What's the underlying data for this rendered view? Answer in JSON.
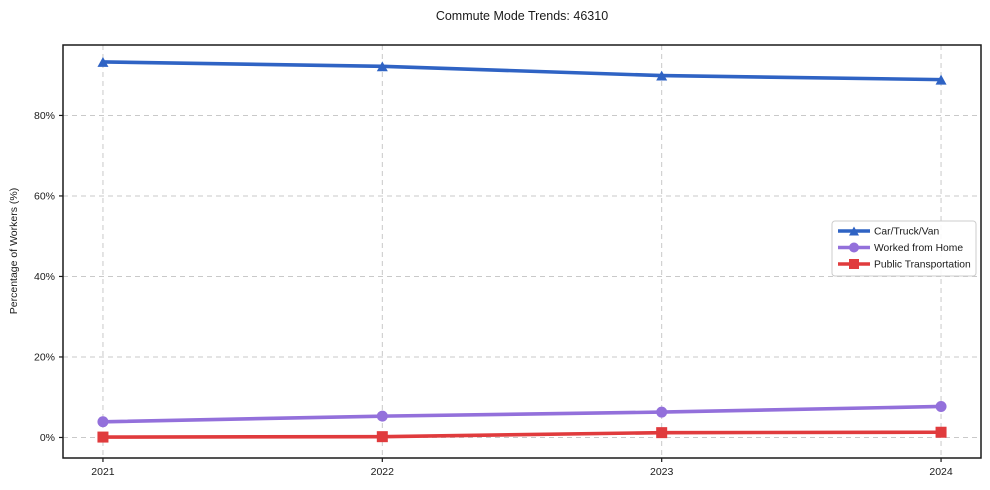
{
  "chart_data": {
    "type": "line",
    "title": "Commute Mode Trends: 46310",
    "xlabel": "",
    "ylabel": "Percentage of Workers (%)",
    "x": [
      2021,
      2022,
      2023,
      2024
    ],
    "x_tick_labels": [
      "2021",
      "2022",
      "2023",
      "2024"
    ],
    "y_ticks": [
      0,
      20,
      40,
      60,
      80
    ],
    "y_tick_suffix": "%",
    "xlim": [
      2020.857,
      2024.143
    ],
    "ylim": [
      -5.1,
      97.5
    ],
    "grid": true,
    "grid_style": "dashed",
    "legend_position": "center-right",
    "series": [
      {
        "name": "Car/Truck/Van",
        "marker": "triangle",
        "color": "#2f63c4",
        "values": [
          93.3,
          92.2,
          89.9,
          88.9
        ]
      },
      {
        "name": "Worked from Home",
        "marker": "circle",
        "color": "#9370db",
        "values": [
          3.9,
          5.3,
          6.3,
          7.7
        ]
      },
      {
        "name": "Public Transportation",
        "marker": "square",
        "color": "#e03b3d",
        "values": [
          0.1,
          0.2,
          1.2,
          1.3
        ]
      }
    ]
  }
}
